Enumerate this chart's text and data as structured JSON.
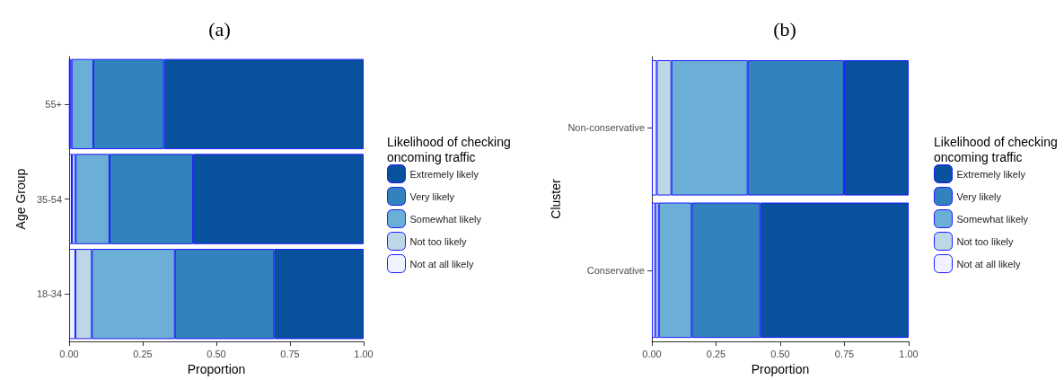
{
  "chart_data": [
    {
      "type": "bar",
      "title": "(a)",
      "orientation": "horizontal",
      "stacked": true,
      "xlabel": "Proportion",
      "ylabel": "Age Group",
      "legend_title": "Likelihood of checking oncoming traffic",
      "legend": "right",
      "grid": false,
      "categories": [
        "55+",
        "35-54",
        "18-34"
      ],
      "xlim": [
        0,
        1
      ],
      "xticks": [
        {
          "value": 0,
          "label": "0.00"
        },
        {
          "value": 0.25,
          "label": "0.25"
        },
        {
          "value": 0.5,
          "label": "0.50"
        },
        {
          "value": 0.75,
          "label": "0.75"
        },
        {
          "value": 1,
          "label": "1.00"
        }
      ],
      "series": [
        {
          "name": "Not at all likely",
          "color": "#eff3ff",
          "values": [
            0.002,
            0.009,
            0.021
          ]
        },
        {
          "name": "Not too likely",
          "color": "#bdd7e7",
          "values": [
            0.006,
            0.013,
            0.056
          ]
        },
        {
          "name": "Somewhat likely",
          "color": "#6baed6",
          "values": [
            0.074,
            0.115,
            0.282
          ]
        },
        {
          "name": "Very likely",
          "color": "#3182bd",
          "values": [
            0.24,
            0.284,
            0.337
          ]
        },
        {
          "name": "Extremely likely",
          "color": "#08519c",
          "values": [
            0.678,
            0.579,
            0.304
          ]
        }
      ]
    },
    {
      "type": "bar",
      "title": "(b)",
      "orientation": "horizontal",
      "stacked": true,
      "xlabel": "Proportion",
      "ylabel": "Cluster",
      "legend_title": "Likelihood of checking oncoming traffic",
      "legend": "right",
      "grid": false,
      "categories": [
        "Non-conservative",
        "Conservative"
      ],
      "xlim": [
        0,
        1
      ],
      "xticks": [
        {
          "value": 0,
          "label": "0.00"
        },
        {
          "value": 0.25,
          "label": "0.25"
        },
        {
          "value": 0.5,
          "label": "0.50"
        },
        {
          "value": 0.75,
          "label": "0.75"
        },
        {
          "value": 1,
          "label": "1.00"
        }
      ],
      "series": [
        {
          "name": "Not at all likely",
          "color": "#eff3ff",
          "values": [
            0.019,
            0.013
          ]
        },
        {
          "name": "Not too likely",
          "color": "#bdd7e7",
          "values": [
            0.057,
            0.014
          ]
        },
        {
          "name": "Somewhat likely",
          "color": "#6baed6",
          "values": [
            0.297,
            0.128
          ]
        },
        {
          "name": "Very likely",
          "color": "#3182bd",
          "values": [
            0.375,
            0.267
          ]
        },
        {
          "name": "Extremely likely",
          "color": "#08519c",
          "values": [
            0.252,
            0.578
          ]
        }
      ]
    }
  ]
}
